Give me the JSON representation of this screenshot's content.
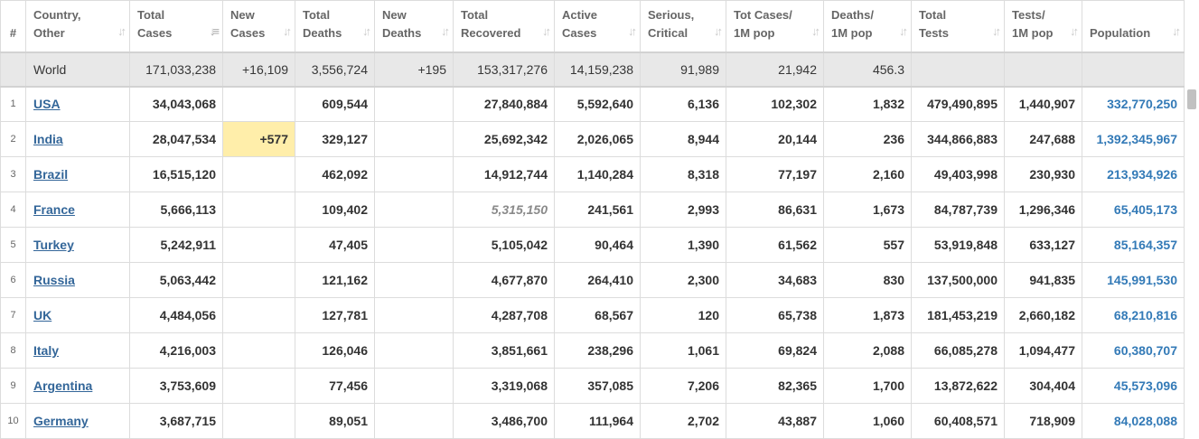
{
  "headers": {
    "rank": "#",
    "country": [
      "Country,",
      "Other"
    ],
    "total_cases": [
      "Total",
      "Cases"
    ],
    "new_cases": [
      "New",
      "Cases"
    ],
    "total_deaths": [
      "Total",
      "Deaths"
    ],
    "new_deaths": [
      "New",
      "Deaths"
    ],
    "total_recovered": [
      "Total",
      "Recovered"
    ],
    "active_cases": [
      "Active",
      "Cases"
    ],
    "serious_critical": [
      "Serious,",
      "Critical"
    ],
    "tot_cases_1m": [
      "Tot Cases/",
      "1M pop"
    ],
    "deaths_1m": [
      "Deaths/",
      "1M pop"
    ],
    "total_tests": [
      "Total",
      "Tests"
    ],
    "tests_1m": [
      "Tests/",
      "1M pop"
    ],
    "population": "Population"
  },
  "world": {
    "country": "World",
    "total_cases": "171,033,238",
    "new_cases": "+16,109",
    "total_deaths": "3,556,724",
    "new_deaths": "+195",
    "total_recovered": "153,317,276",
    "active_cases": "14,159,238",
    "serious_critical": "91,989",
    "tot_cases_1m": "21,942",
    "deaths_1m": "456.3",
    "total_tests": "",
    "tests_1m": "",
    "population": ""
  },
  "rows": [
    {
      "rank": "1",
      "country": "USA",
      "total_cases": "34,043,068",
      "new_cases": "",
      "total_deaths": "609,544",
      "new_deaths": "",
      "total_recovered": "27,840,884",
      "active_cases": "5,592,640",
      "serious_critical": "6,136",
      "tot_cases_1m": "102,302",
      "deaths_1m": "1,832",
      "total_tests": "479,490,895",
      "tests_1m": "1,440,907",
      "population": "332,770,250"
    },
    {
      "rank": "2",
      "country": "India",
      "total_cases": "28,047,534",
      "new_cases": "+577",
      "total_deaths": "329,127",
      "new_deaths": "",
      "total_recovered": "25,692,342",
      "active_cases": "2,026,065",
      "serious_critical": "8,944",
      "tot_cases_1m": "20,144",
      "deaths_1m": "236",
      "total_tests": "344,866,883",
      "tests_1m": "247,688",
      "population": "1,392,345,967"
    },
    {
      "rank": "3",
      "country": "Brazil",
      "total_cases": "16,515,120",
      "new_cases": "",
      "total_deaths": "462,092",
      "new_deaths": "",
      "total_recovered": "14,912,744",
      "active_cases": "1,140,284",
      "serious_critical": "8,318",
      "tot_cases_1m": "77,197",
      "deaths_1m": "2,160",
      "total_tests": "49,403,998",
      "tests_1m": "230,930",
      "population": "213,934,926"
    },
    {
      "rank": "4",
      "country": "France",
      "total_cases": "5,666,113",
      "new_cases": "",
      "total_deaths": "109,402",
      "new_deaths": "",
      "total_recovered": "5,315,150",
      "active_cases": "241,561",
      "serious_critical": "2,993",
      "tot_cases_1m": "86,631",
      "deaths_1m": "1,673",
      "total_tests": "84,787,739",
      "tests_1m": "1,296,346",
      "population": "65,405,173"
    },
    {
      "rank": "5",
      "country": "Turkey",
      "total_cases": "5,242,911",
      "new_cases": "",
      "total_deaths": "47,405",
      "new_deaths": "",
      "total_recovered": "5,105,042",
      "active_cases": "90,464",
      "serious_critical": "1,390",
      "tot_cases_1m": "61,562",
      "deaths_1m": "557",
      "total_tests": "53,919,848",
      "tests_1m": "633,127",
      "population": "85,164,357"
    },
    {
      "rank": "6",
      "country": "Russia",
      "total_cases": "5,063,442",
      "new_cases": "",
      "total_deaths": "121,162",
      "new_deaths": "",
      "total_recovered": "4,677,870",
      "active_cases": "264,410",
      "serious_critical": "2,300",
      "tot_cases_1m": "34,683",
      "deaths_1m": "830",
      "total_tests": "137,500,000",
      "tests_1m": "941,835",
      "population": "145,991,530"
    },
    {
      "rank": "7",
      "country": "UK",
      "total_cases": "4,484,056",
      "new_cases": "",
      "total_deaths": "127,781",
      "new_deaths": "",
      "total_recovered": "4,287,708",
      "active_cases": "68,567",
      "serious_critical": "120",
      "tot_cases_1m": "65,738",
      "deaths_1m": "1,873",
      "total_tests": "181,453,219",
      "tests_1m": "2,660,182",
      "population": "68,210,816"
    },
    {
      "rank": "8",
      "country": "Italy",
      "total_cases": "4,216,003",
      "new_cases": "",
      "total_deaths": "126,046",
      "new_deaths": "",
      "total_recovered": "3,851,661",
      "active_cases": "238,296",
      "serious_critical": "1,061",
      "tot_cases_1m": "69,824",
      "deaths_1m": "2,088",
      "total_tests": "66,085,278",
      "tests_1m": "1,094,477",
      "population": "60,380,707"
    },
    {
      "rank": "9",
      "country": "Argentina",
      "total_cases": "3,753,609",
      "new_cases": "",
      "total_deaths": "77,456",
      "new_deaths": "",
      "total_recovered": "3,319,068",
      "active_cases": "357,085",
      "serious_critical": "7,206",
      "tot_cases_1m": "82,365",
      "deaths_1m": "1,700",
      "total_tests": "13,872,622",
      "tests_1m": "304,404",
      "population": "45,573,096"
    },
    {
      "rank": "10",
      "country": "Germany",
      "total_cases": "3,687,715",
      "new_cases": "",
      "total_deaths": "89,051",
      "new_deaths": "",
      "total_recovered": "3,486,700",
      "active_cases": "111,964",
      "serious_critical": "2,702",
      "tot_cases_1m": "43,887",
      "deaths_1m": "1,060",
      "total_tests": "60,408,571",
      "tests_1m": "718,909",
      "population": "84,028,088"
    }
  ],
  "highlights": {
    "new_cases_color": "#ffeeaa",
    "link_color": "#336699",
    "population_color": "#337ab7",
    "world_row_bg": "#e8e8e8",
    "estimated_recovered_rows": [
      "France"
    ]
  },
  "icons": {
    "sort": "sort-arrows-icon",
    "sort_active": "sort-descending-icon"
  }
}
